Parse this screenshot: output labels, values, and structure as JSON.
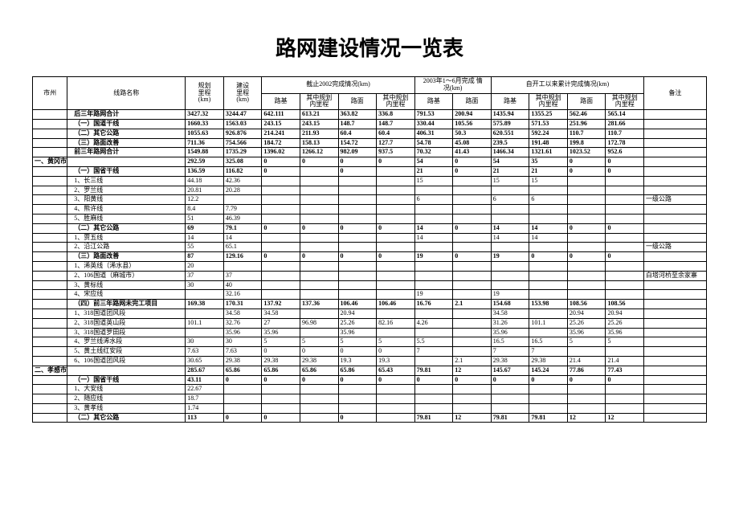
{
  "title": "路网建设情况一览表",
  "header": {
    "shizhou": "市州",
    "xianlu": "线路名称",
    "guihua": "规划\n里程\n(km)",
    "jianshe": "建设\n里程\n(km)",
    "grp2002": "截止2002完成情况(km)",
    "grp2003": "2003年1～6月完成 情\n况(km)",
    "grpTotal": "自开工以来累计完成情况(km)",
    "beizhu": "备注",
    "luji": "路基",
    "gh_nei": "其中规划\n内里程",
    "lumian": "路面"
  },
  "rows": [
    {
      "bold": true,
      "indent": 2,
      "name": "后三年路网合计",
      "v": [
        "3427.32",
        "3244.47",
        "642.111",
        "613.21",
        "363.82",
        "336.8",
        "791.53",
        "200.94",
        "1435.94",
        "1355.25",
        "562.46",
        "565.14",
        ""
      ]
    },
    {
      "bold": true,
      "indent": 2,
      "name": "（一）国道干线",
      "v": [
        "1660.33",
        "1563.03",
        "243.15",
        "243.15",
        "148.7",
        "148.7",
        "330.44",
        "105.56",
        "575.89",
        "571.53",
        "251.96",
        "281.66",
        ""
      ]
    },
    {
      "bold": true,
      "indent": 2,
      "name": "（二）其它公路",
      "v": [
        "1055.63",
        "926.876",
        "214.241",
        "211.93",
        "60.4",
        "60.4",
        "406.31",
        "50.3",
        "620.551",
        "592.24",
        "110.7",
        "110.7",
        ""
      ]
    },
    {
      "bold": true,
      "indent": 2,
      "name": "（三）路面改善",
      "v": [
        "711.36",
        "754.566",
        "184.72",
        "158.13",
        "154.72",
        "127.7",
        "54.78",
        "45.08",
        "239.5",
        "191.48",
        "199.8",
        "172.78",
        ""
      ]
    },
    {
      "bold": true,
      "indent": 2,
      "name": "前三年路网合计",
      "v": [
        "1549.88",
        "1735.29",
        "1396.02",
        "1266.12",
        "982.09",
        "937.5",
        "70.32",
        "41.43",
        "1466.34",
        "1321.61",
        "1023.52",
        "952.6",
        ""
      ]
    },
    {
      "bold": true,
      "sec": "一、黄冈市",
      "name": "",
      "v": [
        "292.59",
        "325.08",
        "0",
        "0",
        "0",
        "0",
        "54",
        "0",
        "54",
        "35",
        "0",
        "0",
        ""
      ]
    },
    {
      "bold": true,
      "indent": 2,
      "name": "（一）国省干线",
      "v": [
        "136.59",
        "116.82",
        "0",
        "",
        "0",
        "",
        "21",
        "0",
        "21",
        "21",
        "0",
        "0",
        ""
      ]
    },
    {
      "indent": 2,
      "name": "1、长三线",
      "v": [
        "44.18",
        "42.36",
        "",
        "",
        "",
        "",
        "15",
        "",
        "15",
        "15",
        "",
        "",
        ""
      ]
    },
    {
      "indent": 2,
      "name": "2、罗兰线",
      "v": [
        "20.81",
        "20.28",
        "",
        "",
        "",
        "",
        "",
        "",
        "",
        "",
        "",
        "",
        ""
      ]
    },
    {
      "indent": 2,
      "name": "3、阳黄线",
      "v": [
        "12.2",
        "",
        "",
        "",
        "",
        "",
        "6",
        "",
        "6",
        "6",
        "",
        "",
        "一级公路"
      ]
    },
    {
      "indent": 2,
      "name": "4、熊许线",
      "v": [
        "8.4",
        "7.79",
        "",
        "",
        "",
        "",
        "",
        "",
        "",
        "",
        "",
        "",
        ""
      ]
    },
    {
      "indent": 2,
      "name": "5、胜麻线",
      "v": [
        "51",
        "46.39",
        "",
        "",
        "",
        "",
        "",
        "",
        "",
        "",
        "",
        "",
        ""
      ]
    },
    {
      "bold": true,
      "indent": 2,
      "name": "（二）其它公路",
      "v": [
        "69",
        "79.1",
        "0",
        "0",
        "0",
        "0",
        "14",
        "0",
        "14",
        "14",
        "0",
        "0",
        ""
      ]
    },
    {
      "indent": 2,
      "name": "1、贾五线",
      "v": [
        "14",
        "14",
        "",
        "",
        "",
        "",
        "14",
        "",
        "14",
        "14",
        "",
        "",
        ""
      ]
    },
    {
      "indent": 2,
      "name": "2、沿江公路",
      "v": [
        "55",
        "65.1",
        "",
        "",
        "",
        "",
        "",
        "",
        "",
        "",
        "",
        "",
        "一级公路"
      ]
    },
    {
      "bold": true,
      "indent": 2,
      "name": "（三）路面改善",
      "v": [
        "87",
        "129.16",
        "0",
        "0",
        "0",
        "0",
        "19",
        "0",
        "19",
        "0",
        "0",
        "0",
        ""
      ]
    },
    {
      "indent": 2,
      "name": "1、浠英线（浠水县）",
      "v": [
        "20",
        "",
        "",
        "",
        "",
        "",
        "",
        "",
        "",
        "",
        "",
        "",
        ""
      ]
    },
    {
      "indent": 2,
      "name": "2、106国道（麻城市）",
      "v": [
        "37",
        "37",
        "",
        "",
        "",
        "",
        "",
        "",
        "",
        "",
        "",
        "",
        "白塔河桥至余家寨"
      ]
    },
    {
      "indent": 2,
      "name": "3、黄标线",
      "v": [
        "30",
        "40",
        "",
        "",
        "",
        "",
        "",
        "",
        "",
        "",
        "",
        "",
        ""
      ]
    },
    {
      "indent": 2,
      "name": "4、宋应线",
      "v": [
        "",
        "32.16",
        "",
        "",
        "",
        "",
        "19",
        "",
        "19",
        "",
        "",
        "",
        ""
      ]
    },
    {
      "bold": true,
      "indent": 2,
      "name": "（四）前三年路网未完工项目",
      "v": [
        "169.38",
        "170.31",
        "137.92",
        "137.36",
        "106.46",
        "106.46",
        "16.76",
        "2.1",
        "154.68",
        "153.98",
        "108.56",
        "108.56",
        ""
      ]
    },
    {
      "indent": 2,
      "name": "1、318国道团风段",
      "v": [
        "",
        "34.58",
        "34.58",
        "",
        "20.94",
        "",
        "",
        "",
        "34.58",
        "",
        "20.94",
        "20.94",
        ""
      ]
    },
    {
      "indent": 2,
      "name": "2、318国道英山段",
      "v": [
        "101.1",
        "32.76",
        "27",
        "96.98",
        "25.26",
        "82.16",
        "4.26",
        "",
        "31.26",
        "101.1",
        "25.26",
        "25.26",
        ""
      ]
    },
    {
      "indent": 2,
      "name": "3、318国道罗田段",
      "v": [
        "",
        "35.96",
        "35.96",
        "",
        "35.96",
        "",
        "",
        "",
        "35.96",
        "",
        "35.96",
        "35.96",
        ""
      ]
    },
    {
      "indent": 2,
      "name": "4、罗兰线浠水段",
      "v": [
        "30",
        "30",
        "5",
        "5",
        "5",
        "5",
        "5.5",
        "",
        "16.5",
        "16.5",
        "5",
        "5",
        ""
      ]
    },
    {
      "indent": 2,
      "name": "5、黄土线红安段",
      "v": [
        "7.63",
        "7.63",
        "0",
        "0",
        "0",
        "0",
        "7",
        "",
        "7",
        "7",
        "",
        "",
        ""
      ]
    },
    {
      "indent": 2,
      "name": "6、106国道团风段",
      "v": [
        "30.65",
        "29.38",
        "29.38",
        "29.38",
        "19.3",
        "19.3",
        "",
        "2.1",
        "29.38",
        "29.38",
        "21.4",
        "21.4",
        ""
      ]
    },
    {
      "bold": true,
      "sec": "二、孝感市",
      "name": "",
      "v": [
        "285.67",
        "65.86",
        "65.86",
        "65.86",
        "65.86",
        "65.43",
        "79.81",
        "12",
        "145.67",
        "145.24",
        "77.86",
        "77.43",
        ""
      ]
    },
    {
      "bold": true,
      "indent": 2,
      "name": "（一）国省干线",
      "v": [
        "43.11",
        "0",
        "0",
        "0",
        "0",
        "0",
        "0",
        "0",
        "0",
        "0",
        "0",
        "0",
        ""
      ]
    },
    {
      "indent": 2,
      "name": "1、大安线",
      "v": [
        "22.67",
        "",
        "",
        "",
        "",
        "",
        "",
        "",
        "",
        "",
        "",
        "",
        ""
      ]
    },
    {
      "indent": 2,
      "name": "2、随应线",
      "v": [
        "18.7",
        "",
        "",
        "",
        "",
        "",
        "",
        "",
        "",
        "",
        "",
        "",
        ""
      ]
    },
    {
      "indent": 2,
      "name": "3、黄孝线",
      "v": [
        "1.74",
        "",
        "",
        "",
        "",
        "",
        "",
        "",
        "",
        "",
        "",
        "",
        ""
      ]
    },
    {
      "bold": true,
      "indent": 2,
      "name": "（二）其它公路",
      "v": [
        "113",
        "0",
        "0",
        "",
        "0",
        "",
        "79.81",
        "12",
        "79.81",
        "79.81",
        "12",
        "12",
        ""
      ]
    }
  ]
}
